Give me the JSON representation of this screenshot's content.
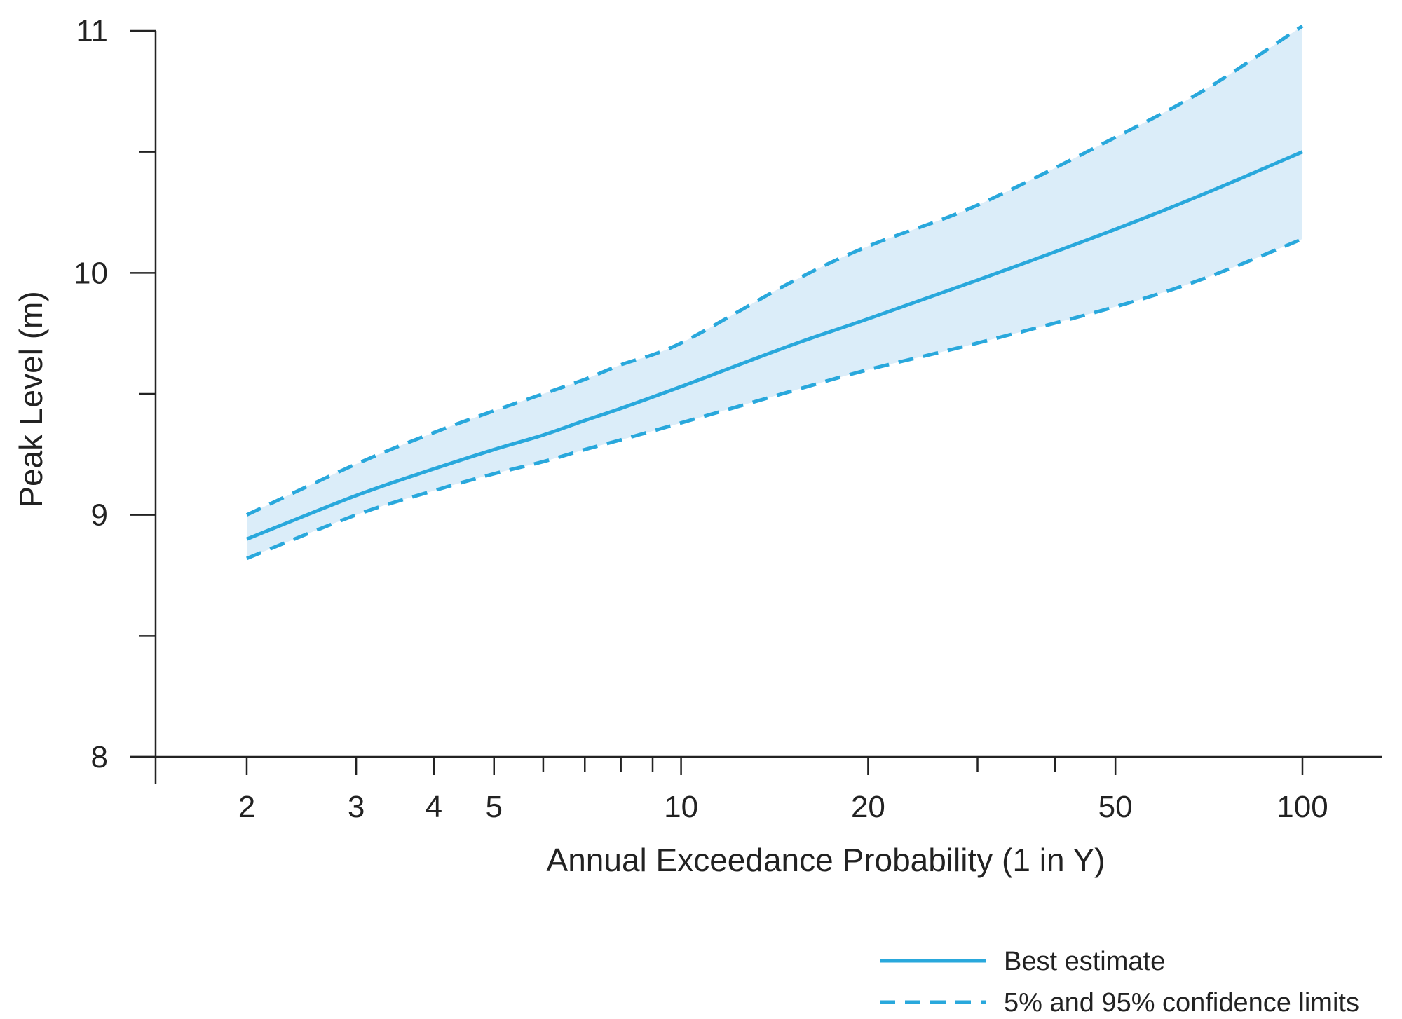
{
  "chart_data": {
    "type": "line",
    "title": "",
    "xlabel": "Annual Exceedance Probability (1 in Y)",
    "ylabel": "Peak Level (m)",
    "x_scale": "log",
    "xlim": [
      1.6,
      130
    ],
    "ylim": [
      8,
      11
    ],
    "x_ticks_major": [
      2,
      3,
      4,
      5,
      10,
      20,
      50,
      100
    ],
    "x_tick_labels": [
      "2",
      "3",
      "4",
      "5",
      "10",
      "20",
      "50",
      "100"
    ],
    "x_ticks_minor": [
      6,
      7,
      8,
      9,
      30,
      40
    ],
    "y_ticks_major": [
      8,
      9,
      10,
      11
    ],
    "y_tick_labels": [
      "8",
      "9",
      "10",
      "11"
    ],
    "y_ticks_minor": [
      8.5,
      9.5,
      10.5
    ],
    "grid": false,
    "legend_position": "bottom-right",
    "x": [
      2,
      3,
      4,
      5,
      6,
      7,
      8,
      10,
      15,
      20,
      30,
      50,
      70,
      100
    ],
    "series": [
      {
        "name": "Best estimate",
        "style": "solid",
        "values": [
          8.9,
          9.08,
          9.19,
          9.27,
          9.33,
          9.39,
          9.44,
          9.53,
          9.7,
          9.81,
          9.97,
          10.18,
          10.33,
          10.5
        ]
      },
      {
        "name": "5% and 95% confidence limits",
        "style": "dashed",
        "role": "upper",
        "values": [
          9.0,
          9.21,
          9.34,
          9.43,
          9.5,
          9.56,
          9.62,
          9.71,
          9.96,
          10.11,
          10.28,
          10.56,
          10.76,
          11.02
        ]
      },
      {
        "name": "5% and 95% confidence limits",
        "style": "dashed",
        "role": "lower",
        "values": [
          8.82,
          9.0,
          9.1,
          9.17,
          9.22,
          9.27,
          9.31,
          9.38,
          9.51,
          9.6,
          9.71,
          9.86,
          9.98,
          10.14
        ]
      }
    ],
    "band": {
      "between": [
        "upper",
        "lower"
      ],
      "color": "#dbedf9"
    },
    "colors": {
      "line": "#29a8dc",
      "band": "#dbedf9",
      "axis": "#222222"
    },
    "legend": [
      {
        "label": "Best estimate",
        "style": "solid"
      },
      {
        "label": "5% and 95% confidence limits",
        "style": "dashed"
      }
    ]
  }
}
